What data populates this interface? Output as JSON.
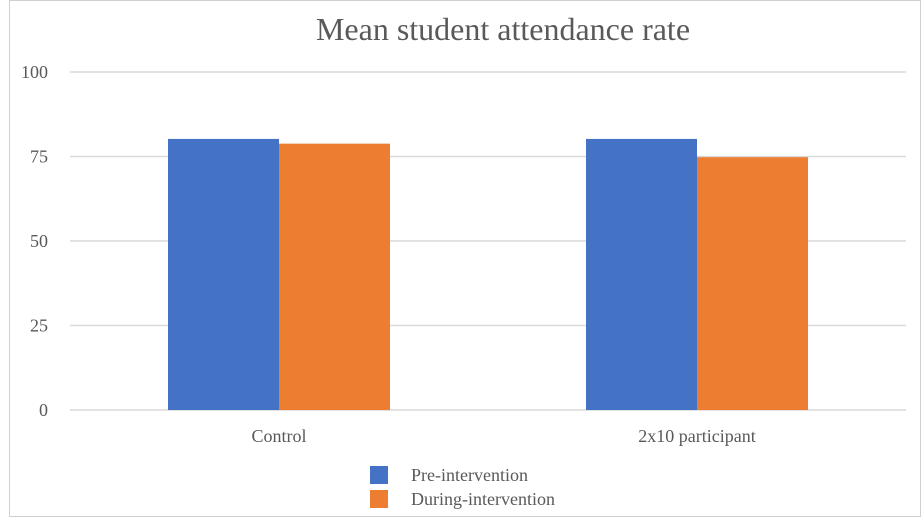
{
  "chart_data": {
    "type": "bar",
    "title": "Mean student attendance rate",
    "xlabel": "",
    "ylabel": "",
    "categories": [
      "Control",
      "2x10 participant"
    ],
    "series": [
      {
        "name": "Pre-intervention",
        "values": [
          80.2,
          80.2
        ],
        "color": "#4472C4"
      },
      {
        "name": "During-intervention",
        "values": [
          78.8,
          74.8
        ],
        "color": "#ED7D31"
      }
    ],
    "ylim": [
      0,
      100
    ],
    "yticks": [
      "0",
      "25",
      "50",
      "75",
      "100"
    ],
    "grid": true,
    "legend": "bottom"
  }
}
